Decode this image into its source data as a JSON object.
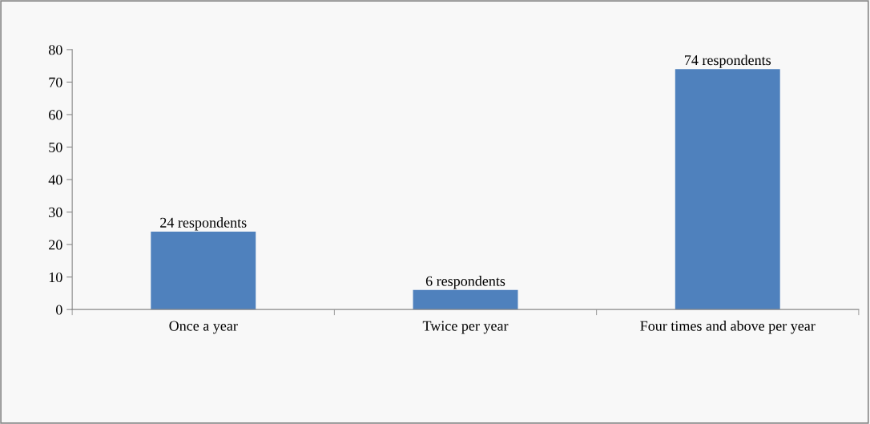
{
  "chart_data": {
    "type": "bar",
    "categories": [
      "Once a year",
      "Twice per year",
      "Four times and above per year"
    ],
    "values": [
      24,
      6,
      74
    ],
    "value_labels": [
      "24 respondents",
      "6 respondents",
      "74 respondents"
    ],
    "color": "#4f81bd",
    "ylim": [
      0,
      80
    ],
    "yticks": [
      0,
      10,
      20,
      30,
      40,
      50,
      60,
      70,
      80
    ],
    "grid": false,
    "legend": false
  }
}
